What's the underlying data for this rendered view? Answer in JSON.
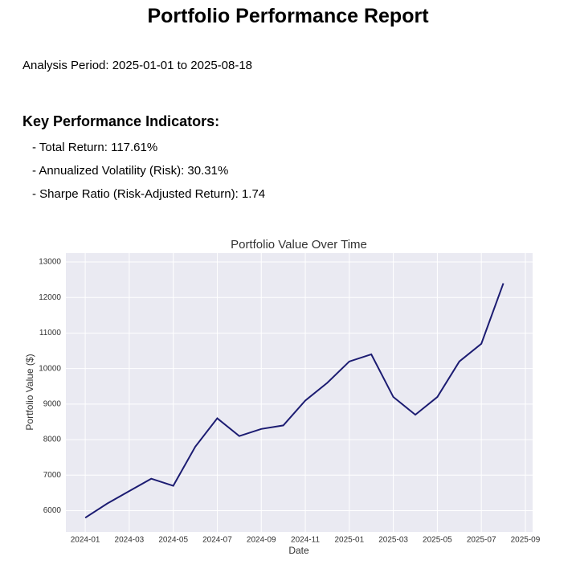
{
  "report": {
    "title": "Portfolio Performance Report",
    "period": "Analysis Period: 2025-01-01 to 2025-08-18",
    "kpi_heading": "Key Performance Indicators:",
    "kpis": [
      "- Total Return: 117.61%",
      "- Annualized Volatility (Risk): 30.31%",
      "- Sharpe Ratio (Risk-Adjusted Return): 1.74"
    ]
  },
  "chart_data": {
    "type": "line",
    "title": "Portfolio Value Over Time",
    "x_label": "Date",
    "y_label": "Portfolio Value ($)",
    "x": [
      "2024-01",
      "2024-02",
      "2024-03",
      "2024-04",
      "2024-05",
      "2024-06",
      "2024-07",
      "2024-08",
      "2024-09",
      "2024-10",
      "2024-11",
      "2024-12",
      "2025-01",
      "2025-02",
      "2025-03",
      "2025-04",
      "2025-05",
      "2025-06",
      "2025-07",
      "2025-08"
    ],
    "series": [
      {
        "name": "Portfolio Value",
        "color": "#1c1c72",
        "values": [
          5800,
          6200,
          6550,
          6900,
          6700,
          7800,
          8600,
          8100,
          8300,
          8400,
          9100,
          9600,
          10200,
          10400,
          9200,
          8700,
          9200,
          10200,
          10700,
          12400
        ]
      }
    ],
    "xticks": [
      "2024-01",
      "2024-03",
      "2024-05",
      "2024-07",
      "2024-09",
      "2024-11",
      "2025-01",
      "2025-03",
      "2025-05",
      "2025-07",
      "2025-09"
    ],
    "ylim": [
      5400,
      13250
    ],
    "yticks": [
      6000,
      7000,
      8000,
      9000,
      10000,
      11000,
      12000,
      13000
    ],
    "grid": true
  }
}
